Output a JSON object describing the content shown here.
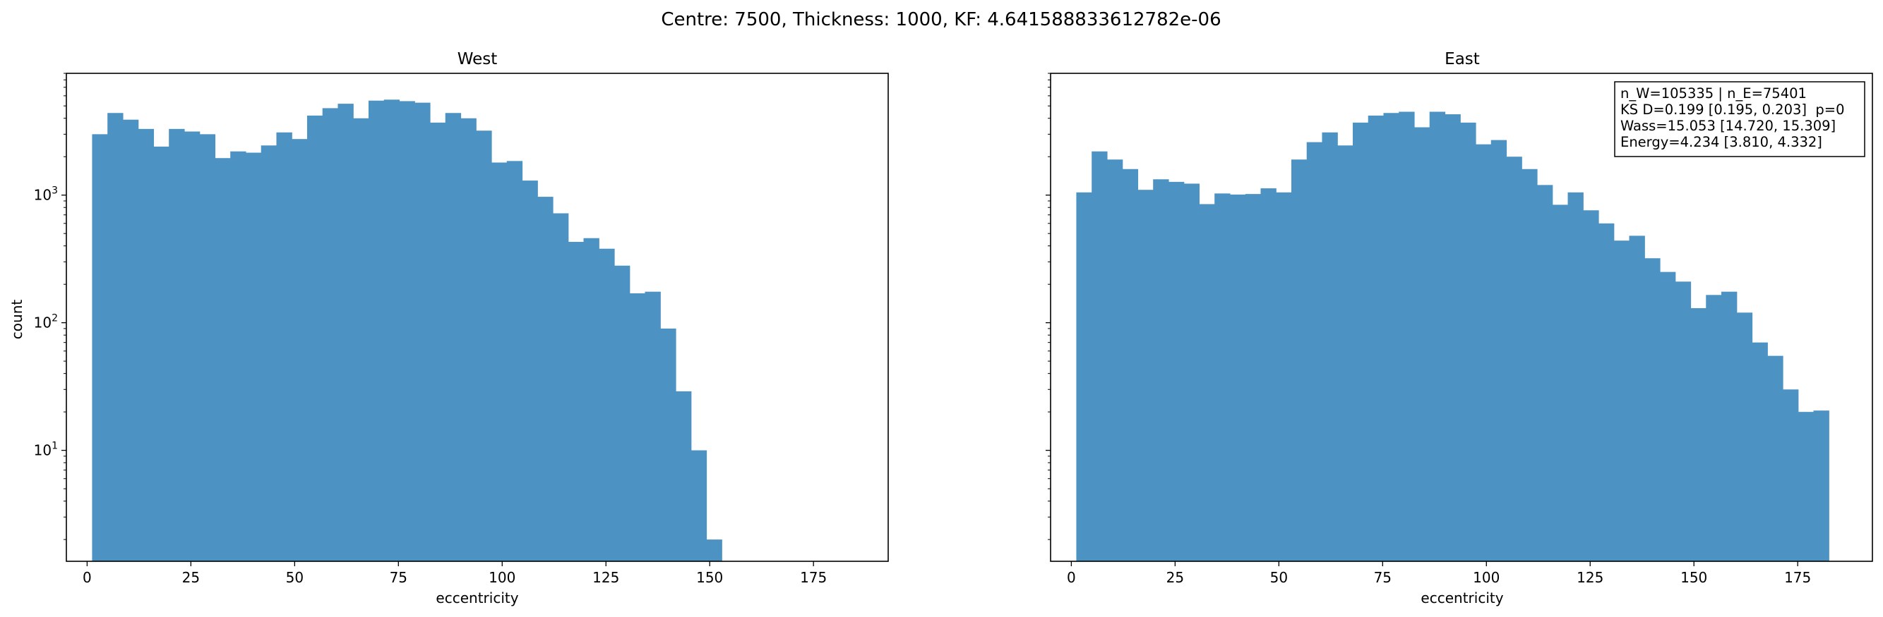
{
  "figure": {
    "suptitle": "Centre: 7500, Thickness: 1000, KF: 4.641588833612782e-06"
  },
  "chart_data": [
    {
      "type": "bar",
      "title": "West",
      "xlabel": "eccentricity",
      "ylabel": "count",
      "yscale": "log",
      "xlim": [
        -5,
        193
      ],
      "ylim": [
        1.35,
        9000
      ],
      "xticks": [
        0,
        25,
        50,
        75,
        100,
        125,
        150,
        175
      ],
      "yticks": [
        {
          "value": 10,
          "label": "10^1"
        },
        {
          "value": 100,
          "label": "10^2"
        },
        {
          "value": 1000,
          "label": "10^3"
        }
      ],
      "bar_color": "#4c92c3",
      "bins": {
        "start": 1.2,
        "width": 3.7
      },
      "values": [
        3000,
        4400,
        3900,
        3300,
        2400,
        3300,
        3150,
        3000,
        1950,
        2200,
        2150,
        2450,
        3100,
        2750,
        4200,
        4800,
        5200,
        4000,
        5500,
        5600,
        5450,
        5300,
        3700,
        4400,
        4000,
        3200,
        1800,
        1850,
        1300,
        970,
        720,
        430,
        460,
        380,
        280,
        170,
        175,
        90,
        29,
        10,
        2
      ]
    },
    {
      "type": "bar",
      "title": "East",
      "xlabel": "eccentricity",
      "ylabel": "",
      "yscale": "log",
      "xlim": [
        -5,
        193
      ],
      "ylim": [
        1.35,
        9000
      ],
      "xticks": [
        0,
        25,
        50,
        75,
        100,
        125,
        150,
        175
      ],
      "yticks": [
        {
          "value": 10,
          "label": ""
        },
        {
          "value": 100,
          "label": ""
        },
        {
          "value": 1000,
          "label": ""
        }
      ],
      "bar_color": "#4c92c3",
      "bins": {
        "start": 1.2,
        "width": 3.7
      },
      "values": [
        1050,
        2200,
        1900,
        1600,
        1100,
        1330,
        1270,
        1230,
        850,
        1030,
        1010,
        1020,
        1130,
        1050,
        1900,
        2600,
        3100,
        2450,
        3700,
        4200,
        4400,
        4500,
        3400,
        4500,
        4300,
        3700,
        2500,
        2700,
        2000,
        1600,
        1200,
        840,
        1050,
        760,
        600,
        440,
        480,
        320,
        250,
        210,
        130,
        165,
        175,
        120,
        70,
        55,
        30,
        20,
        20.5
      ],
      "stats_box": [
        "n_W=105335 | n_E=75401",
        "KS D=0.199 [0.195, 0.203]  p=0",
        "Wass=15.053 [14.720, 15.309]",
        "Energy=4.234 [3.810, 4.332]"
      ]
    }
  ]
}
